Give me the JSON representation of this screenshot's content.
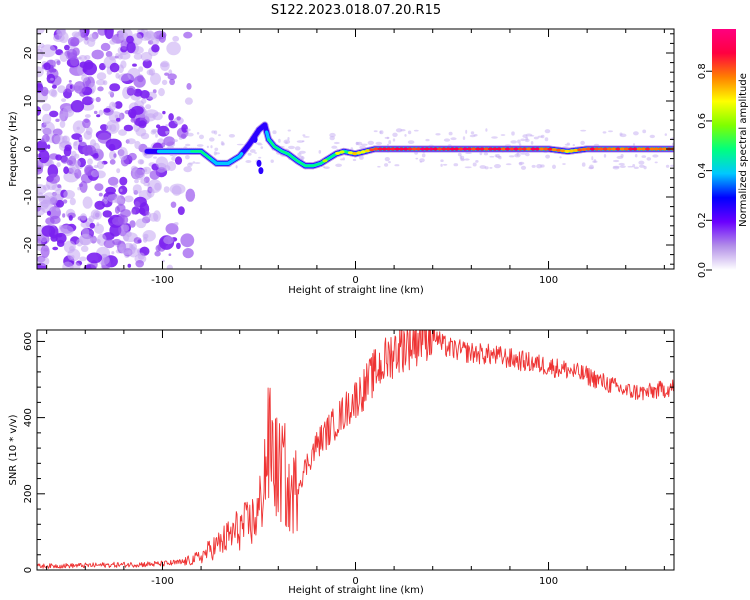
{
  "figure_title": "S122.2023.018.07.20.R15",
  "colors": {
    "snr_line": "#ee3333",
    "colormap": [
      "#ffffff",
      "#b28ee8",
      "#6a00ff",
      "#0000ff",
      "#00c8ff",
      "#00ff7f",
      "#7fff00",
      "#ffff00",
      "#ff8000",
      "#ff0040",
      "#ff007f"
    ]
  },
  "chart_data": [
    {
      "type": "heatmap",
      "title": "S122.2023.018.07.20.R15",
      "xlabel": "Height of straight line (km)",
      "ylabel": "Frequency (Hz)",
      "xlim": [
        -165,
        165
      ],
      "ylim": [
        -25,
        25
      ],
      "xticks": [
        -100,
        0,
        100
      ],
      "yticks": [
        -20,
        -10,
        0,
        10,
        20
      ],
      "colorbar": {
        "label": "Normalized spectral amplitude",
        "range": [
          0.0,
          0.97
        ],
        "ticks": [
          0.0,
          0.2,
          0.4,
          0.6,
          0.8
        ]
      },
      "ridge": {
        "x": [
          -108,
          -90,
          -80,
          -72,
          -66,
          -60,
          -55,
          -50,
          -47,
          -45,
          -42,
          -38,
          -35,
          -30,
          -26,
          -22,
          -18,
          -14,
          -10,
          -6,
          0,
          5,
          10,
          20,
          40,
          60,
          80,
          100,
          110,
          120,
          140,
          165
        ],
        "freq": [
          -0.5,
          -0.5,
          -0.5,
          -3,
          -3,
          -1.5,
          1,
          4,
          5,
          2,
          0.5,
          -0.5,
          -1,
          -2.5,
          -3.5,
          -3.5,
          -3,
          -2,
          -1,
          -0.5,
          -1,
          -0.5,
          0,
          0,
          0,
          0,
          0,
          0,
          -0.5,
          0,
          0,
          0
        ],
        "amplitude": [
          0.3,
          0.45,
          0.55,
          0.45,
          0.45,
          0.35,
          0.3,
          0.3,
          0.3,
          0.55,
          0.6,
          0.55,
          0.55,
          0.5,
          0.55,
          0.55,
          0.6,
          0.65,
          0.65,
          0.6,
          0.7,
          0.75,
          0.85,
          0.9,
          0.9,
          0.9,
          0.88,
          0.85,
          0.75,
          0.85,
          0.85,
          0.85
        ]
      },
      "noise_region_x": [
        -165,
        -85
      ]
    },
    {
      "type": "line",
      "xlabel": "Height of straight line (km)",
      "ylabel": "SNR (10 * v/v)",
      "xlim": [
        -165,
        165
      ],
      "ylim": [
        0,
        630
      ],
      "xticks": [
        -100,
        0,
        100
      ],
      "yticks": [
        0,
        200,
        400,
        600
      ],
      "series": [
        {
          "name": "SNR",
          "x": [
            -165,
            -140,
            -120,
            -100,
            -90,
            -85,
            -80,
            -75,
            -70,
            -65,
            -60,
            -55,
            -50,
            -46,
            -44,
            -40,
            -37,
            -35,
            -30,
            -25,
            -20,
            -15,
            -10,
            -5,
            0,
            5,
            10,
            15,
            20,
            25,
            30,
            35,
            40,
            45,
            50,
            60,
            70,
            80,
            90,
            100,
            110,
            120,
            125,
            130,
            140,
            150,
            160,
            165
          ],
          "values": [
            10,
            12,
            14,
            16,
            20,
            26,
            35,
            55,
            70,
            90,
            110,
            120,
            150,
            300,
            330,
            250,
            270,
            180,
            220,
            280,
            330,
            360,
            390,
            420,
            450,
            480,
            520,
            545,
            575,
            590,
            600,
            620,
            625,
            590,
            580,
            570,
            565,
            555,
            545,
            535,
            525,
            510,
            500,
            490,
            470,
            465,
            475,
            480
          ]
        }
      ]
    }
  ]
}
